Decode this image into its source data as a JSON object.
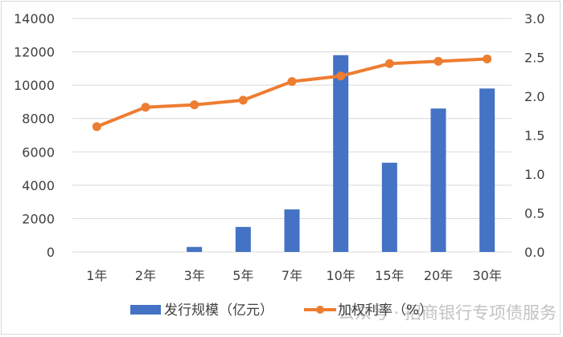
{
  "chart_data": {
    "type": "bar+line",
    "title": "",
    "categories": [
      "1年",
      "2年",
      "3年",
      "5年",
      "7年",
      "10年",
      "15年",
      "20年",
      "30年"
    ],
    "series": [
      {
        "name": "发行规模（亿元）",
        "type": "bar",
        "axis": "left",
        "color": "#4472C4",
        "values": [
          0,
          0,
          300,
          1500,
          2550,
          11800,
          5350,
          8600,
          9800
        ]
      },
      {
        "name": "加权利率（%）",
        "type": "line",
        "axis": "right",
        "color": "#ED7D31",
        "values": [
          1.61,
          1.86,
          1.89,
          1.95,
          2.19,
          2.26,
          2.42,
          2.45,
          2.48
        ]
      }
    ],
    "left_axis": {
      "ylim": [
        0,
        14000
      ],
      "ticks": [
        0,
        2000,
        4000,
        6000,
        8000,
        10000,
        12000,
        14000
      ]
    },
    "right_axis": {
      "ylim": [
        0,
        3.0
      ],
      "ticks": [
        "0.0",
        "0.5",
        "1.0",
        "1.5",
        "2.0",
        "2.5",
        "3.0"
      ]
    },
    "xlabel": "",
    "ylabel": "",
    "grid": true,
    "legend_position": "bottom"
  },
  "legend": {
    "bar_label": "发行规模（亿元）",
    "line_label": "加权利率（%）"
  },
  "watermark": "公众号 · 招商银行专项债服务"
}
